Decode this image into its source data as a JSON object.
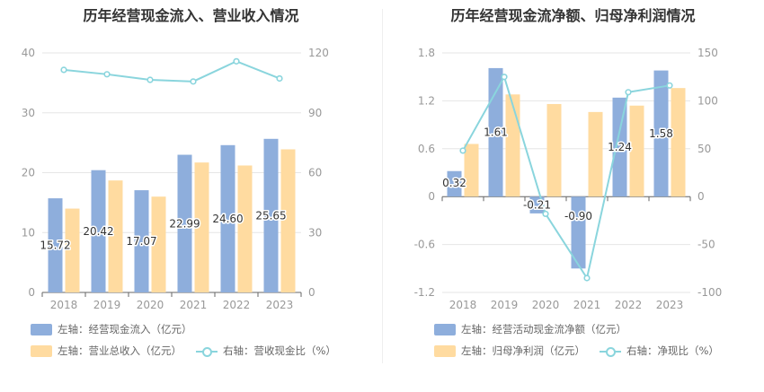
{
  "colors": {
    "bar1": "#8eaedc",
    "bar2": "#ffdba0",
    "line": "#8ad5dd",
    "grid": "#e6e6e6",
    "axis": "#999999",
    "text": "#333333"
  },
  "chart_data": [
    {
      "type": "bar",
      "title": "历年经营现金流入、营业收入情况",
      "categories": [
        "2018",
        "2019",
        "2020",
        "2021",
        "2022",
        "2023"
      ],
      "left_axis": {
        "ylim": [
          0,
          40
        ],
        "ticks": [
          "0",
          "10",
          "20",
          "30",
          "40"
        ]
      },
      "right_axis": {
        "ylim": [
          0,
          120
        ],
        "ticks": [
          "0",
          "30",
          "60",
          "90",
          "120"
        ]
      },
      "series": [
        {
          "name": "左轴：经营现金流入（亿元）",
          "kind": "bar",
          "axis": "left",
          "values": [
            15.72,
            20.42,
            17.07,
            22.99,
            24.6,
            25.65
          ],
          "labels": [
            "15.72",
            "20.42",
            "17.07",
            "22.99",
            "24.60",
            "25.65"
          ]
        },
        {
          "name": "左轴：营业总收入（亿元）",
          "kind": "bar",
          "axis": "left",
          "values": [
            14.0,
            18.7,
            16.0,
            21.7,
            21.2,
            23.9
          ]
        },
        {
          "name": "右轴：营收现金比（%）",
          "kind": "line",
          "axis": "right",
          "values": [
            111.5,
            109.3,
            106.5,
            105.7,
            115.8,
            107.2
          ]
        }
      ],
      "legend_position": "bottom-left",
      "grid": true
    },
    {
      "type": "bar",
      "title": "历年经营现金流净额、归母净利润情况",
      "categories": [
        "2018",
        "2019",
        "2020",
        "2021",
        "2022",
        "2023"
      ],
      "left_axis": {
        "ylim": [
          -1.2,
          1.8
        ],
        "ticks": [
          "-1.2",
          "-0.6",
          "0",
          "0.6",
          "1.2",
          "1.8"
        ]
      },
      "right_axis": {
        "ylim": [
          -100,
          150
        ],
        "ticks": [
          "-100",
          "-50",
          "0",
          "50",
          "100",
          "150"
        ]
      },
      "series": [
        {
          "name": "左轴：经营活动现金流净额（亿元）",
          "kind": "bar",
          "axis": "left",
          "values": [
            0.32,
            1.61,
            -0.21,
            -0.9,
            1.24,
            1.58
          ],
          "labels": [
            "0.32",
            "1.61",
            "-0.21",
            "-0.90",
            "1.24",
            "1.58"
          ]
        },
        {
          "name": "左轴：归母净利润（亿元）",
          "kind": "bar",
          "axis": "left",
          "values": [
            0.66,
            1.28,
            1.16,
            1.06,
            1.14,
            1.36
          ]
        },
        {
          "name": "右轴：净现比（%）",
          "kind": "line",
          "axis": "right",
          "values": [
            48,
            125,
            -18,
            -85,
            109,
            116
          ]
        }
      ],
      "legend_position": "bottom-left",
      "grid": true
    }
  ]
}
